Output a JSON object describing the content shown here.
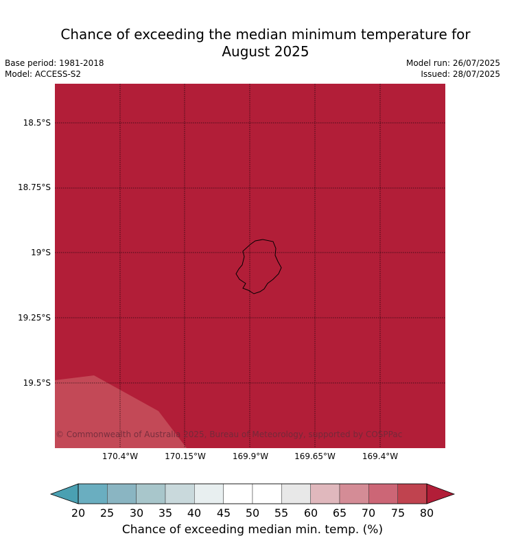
{
  "header": {
    "title_line1": "Chance of exceeding the median minimum temperature for",
    "title_line2": "August 2025",
    "base_period": "Base period: 1981-2018",
    "model": "Model: ACCESS-S2",
    "model_run": "Model run: 26/07/2025",
    "issued": "Issued: 28/07/2025"
  },
  "map": {
    "latitude_labels": [
      "18.5°S",
      "18.75°S",
      "19°S",
      "19.25°S",
      "19.5°S"
    ],
    "longitude_labels": [
      "170.4°W",
      "170.15°W",
      "169.9°W",
      "169.65°W",
      "169.4°W"
    ],
    "dominant_category": "80",
    "dominant_color": "#b21e38",
    "lower_left_category": "75",
    "lower_left_color": "#c34957",
    "island_outline_color": "#000000",
    "copyright": "© Commonwealth of Australia 2025, Bureau of Meteorology, supported by COSPPac"
  },
  "colorbar": {
    "ticks": [
      "20",
      "25",
      "30",
      "35",
      "40",
      "45",
      "50",
      "55",
      "60",
      "65",
      "70",
      "75",
      "80"
    ],
    "low_extend_color": "#4aa0b2",
    "high_extend_color": "#b21e38",
    "colors": [
      "#6aaec0",
      "#8ab5c2",
      "#a8c6cb",
      "#c9d9dc",
      "#e8eff0",
      "#ffffff",
      "#ffffff",
      "#e8e8e8",
      "#e0b8bd",
      "#d48c96",
      "#cc6676",
      "#c0434f"
    ],
    "label": "Chance of exceeding median min. temp. (%)"
  }
}
